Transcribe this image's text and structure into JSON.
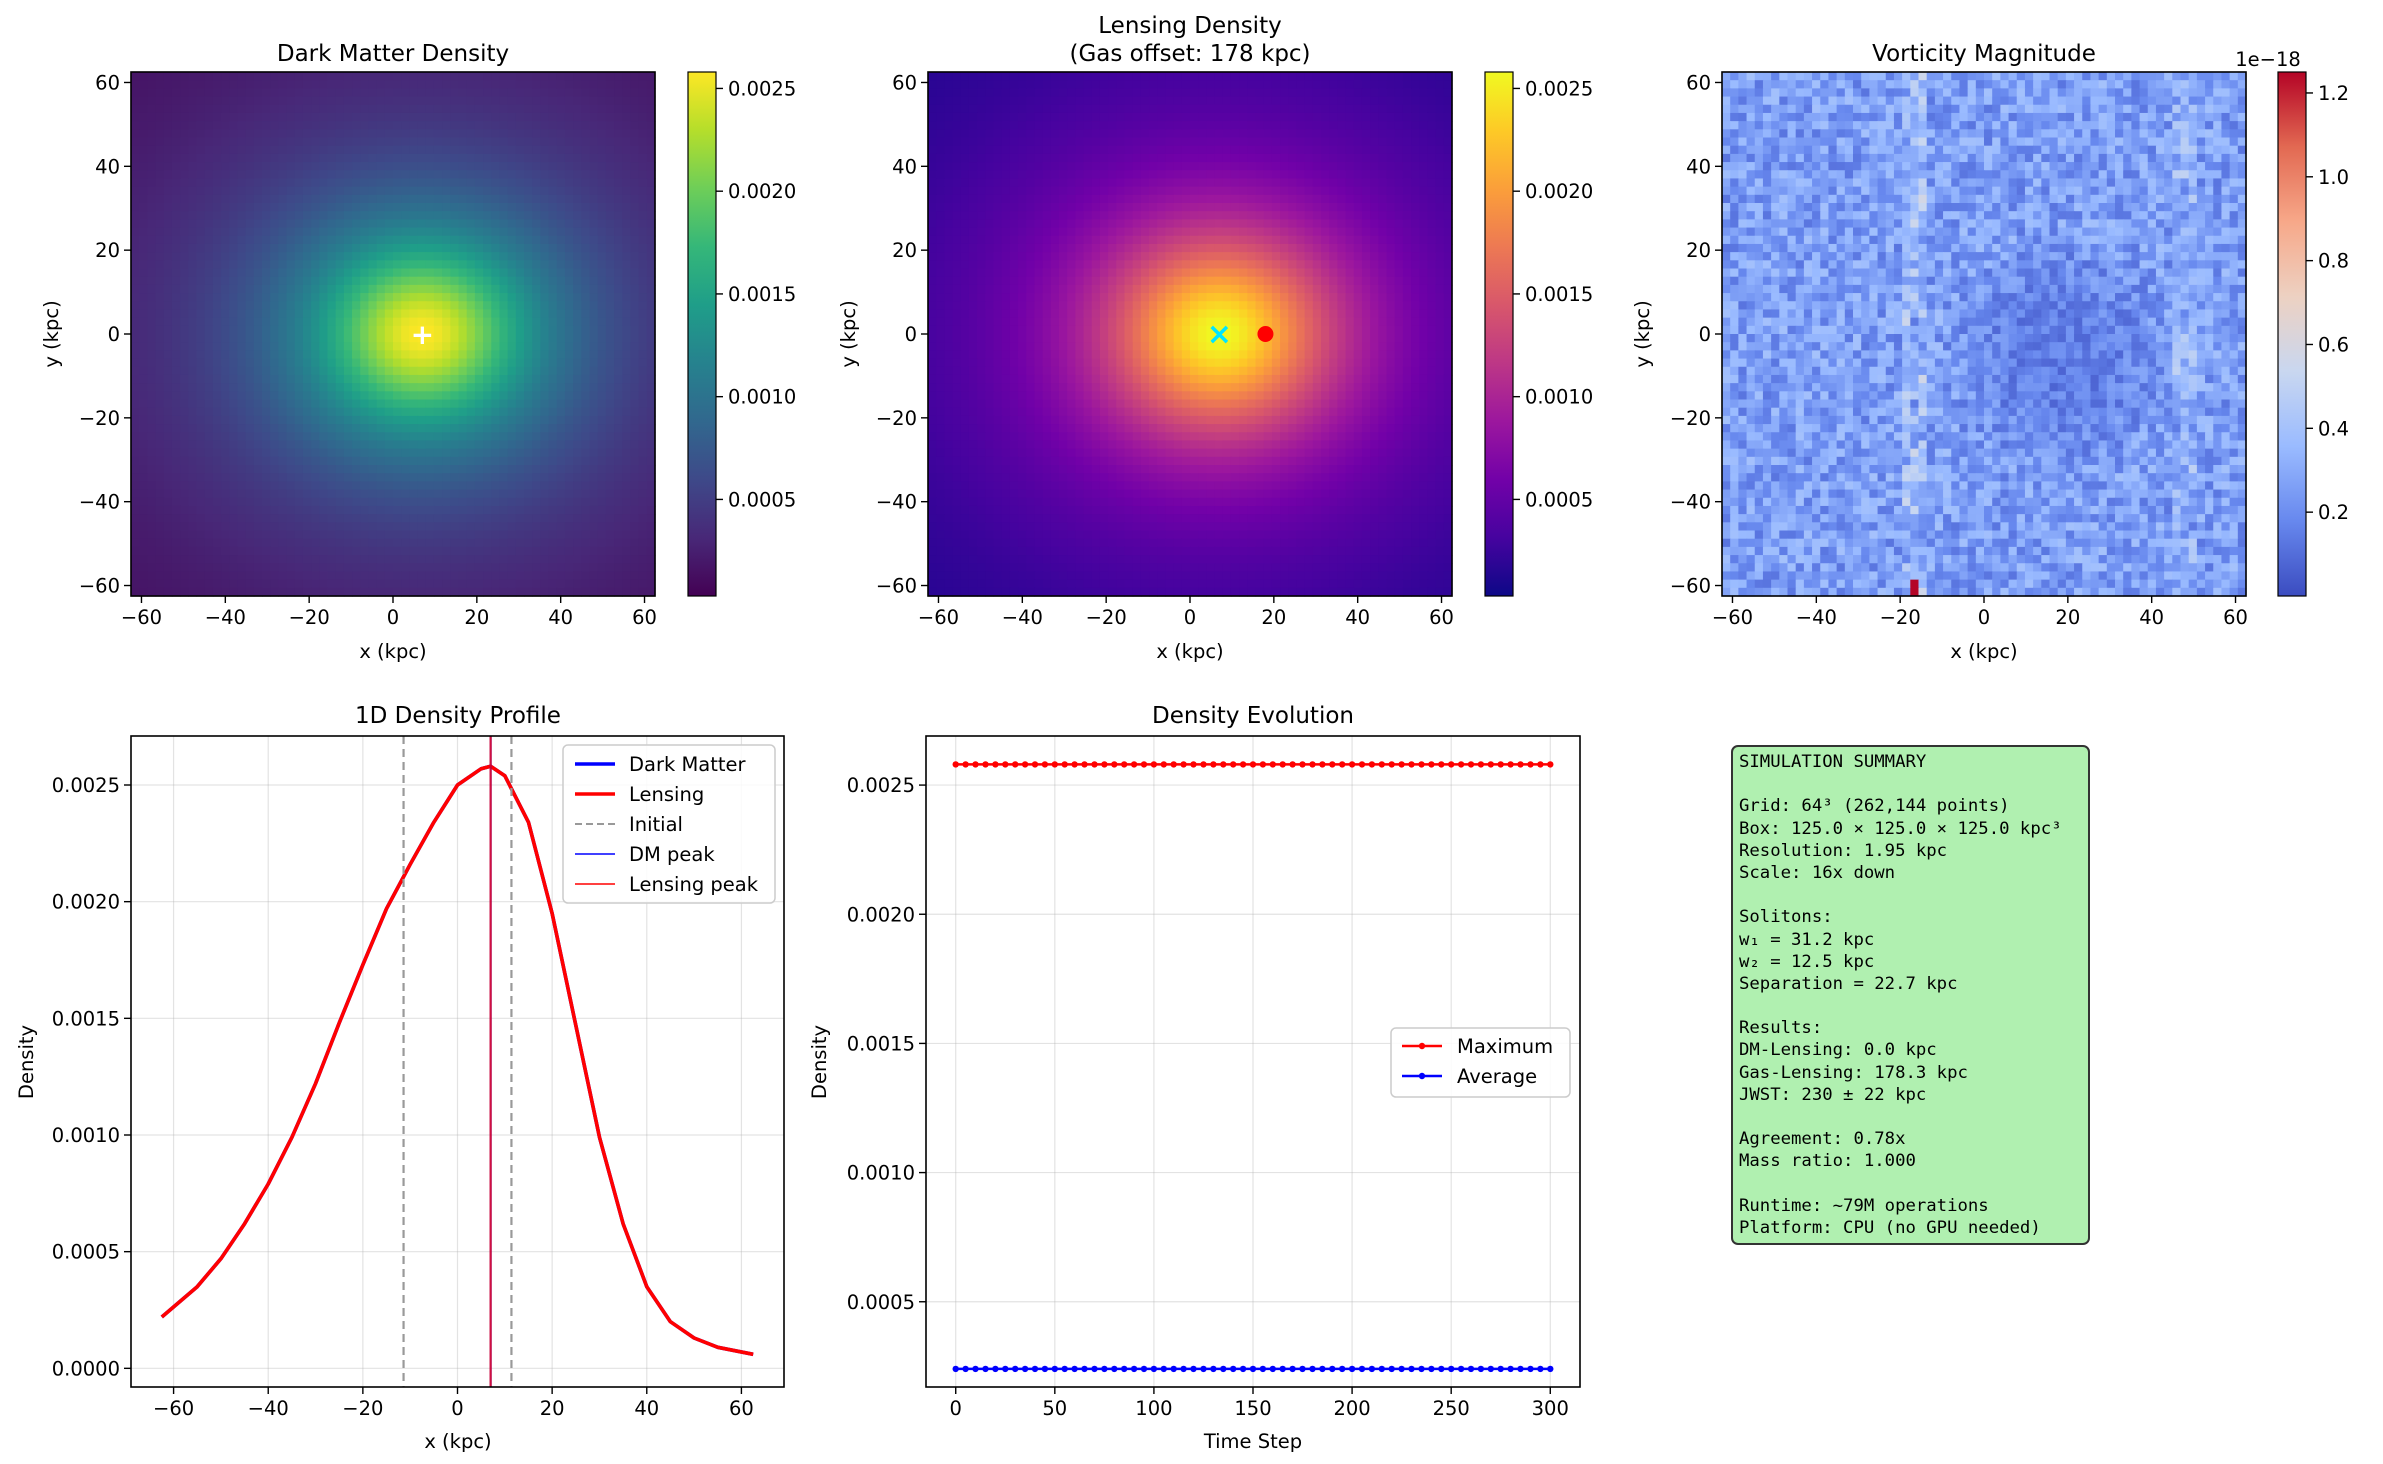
{
  "colors": {
    "viridis": [
      "#440154",
      "#482878",
      "#3e4989",
      "#31688e",
      "#26828e",
      "#1f9e89",
      "#35b779",
      "#6ece58",
      "#b5de2b",
      "#fde725"
    ],
    "plasma": [
      "#0d0887",
      "#46039f",
      "#7201a8",
      "#9c179e",
      "#bd3786",
      "#d8576b",
      "#ed7953",
      "#fb9f3a",
      "#fdca26",
      "#f0f921"
    ],
    "coolwarm": [
      "#3b4cc0",
      "#6788ee",
      "#9abbff",
      "#c9d7f0",
      "#edd1c2",
      "#f7a889",
      "#e26952",
      "#b40426"
    ],
    "dm_line": "#0000ff",
    "lensing_line": "#ff0000",
    "initial_line": "#999999",
    "summary_bg": "#b0f0b0"
  },
  "panels": {
    "dm_density": {
      "title": "Dark Matter Density",
      "xlabel": "x (kpc)",
      "ylabel": "y (kpc)",
      "ticks": [
        "−60",
        "−40",
        "−20",
        "0",
        "20",
        "40",
        "60"
      ],
      "colorbar_ticks": [
        "0.0005",
        "0.0010",
        "0.0015",
        "0.0020",
        "0.0025"
      ],
      "marker": "+"
    },
    "lensing_density": {
      "title_line1": "Lensing Density",
      "title_line2": "(Gas offset: 178 kpc)",
      "xlabel": "x (kpc)",
      "ylabel": "y (kpc)",
      "ticks": [
        "−60",
        "−40",
        "−20",
        "0",
        "20",
        "40",
        "60"
      ],
      "colorbar_ticks": [
        "0.0005",
        "0.0010",
        "0.0015",
        "0.0020",
        "0.0025"
      ],
      "marker": "×"
    },
    "vorticity": {
      "title": "Vorticity Magnitude",
      "xlabel": "x (kpc)",
      "ylabel": "y (kpc)",
      "ticks": [
        "−60",
        "−40",
        "−20",
        "0",
        "20",
        "40",
        "60"
      ],
      "colorbar_ticks": [
        "0.2",
        "0.4",
        "0.6",
        "0.8",
        "1.0",
        "1.2"
      ],
      "colorbar_offset": "1e−18"
    },
    "profile": {
      "title": "1D Density Profile",
      "xlabel": "x (kpc)",
      "ylabel": "Density",
      "xticks": [
        "−60",
        "−40",
        "−20",
        "0",
        "20",
        "40",
        "60"
      ],
      "yticks": [
        "0.0000",
        "0.0005",
        "0.0010",
        "0.0015",
        "0.0020",
        "0.0025"
      ],
      "legend": [
        "Dark Matter",
        "Lensing",
        "Initial",
        "DM peak",
        "Lensing peak"
      ]
    },
    "evolution": {
      "title": "Density Evolution",
      "xlabel": "Time Step",
      "ylabel": "Density",
      "xticks": [
        "0",
        "50",
        "100",
        "150",
        "200",
        "250",
        "300"
      ],
      "yticks": [
        "0.0005",
        "0.0010",
        "0.0015",
        "0.0020",
        "0.0025"
      ],
      "legend": [
        "Maximum",
        "Average"
      ]
    }
  },
  "summary": [
    "SIMULATION SUMMARY",
    "",
    "Grid: 64³ (262,144 points)",
    "Box: 125.0 × 125.0 × 125.0 kpc³",
    "Resolution: 1.95 kpc",
    "Scale: 16x down",
    "",
    "Solitons:",
    "w₁ = 31.2 kpc",
    "w₂ = 12.5 kpc",
    "Separation = 22.7 kpc",
    "",
    "Results:",
    "DM-Lensing: 0.0 kpc",
    "Gas-Lensing: 178.3 kpc",
    "JWST: 230 ± 22 kpc",
    "",
    "Agreement: 0.78x",
    "Mass ratio: 1.000",
    "",
    "Runtime: ~79M operations",
    "Platform: CPU (no GPU needed)"
  ],
  "chart_data": [
    {
      "type": "heatmap",
      "title": "Dark Matter Density",
      "xlabel": "x (kpc)",
      "ylabel": "y (kpc)",
      "xlim": [
        -62.5,
        62.5
      ],
      "ylim": [
        -62.5,
        62.5
      ],
      "grid_size": 64,
      "colormap": "viridis",
      "color_range": [
        3e-05,
        0.00258
      ],
      "blob_center_kpc": [
        7,
        0
      ],
      "blob_width_kpc": [
        25,
        22
      ],
      "peak_marker_kpc": [
        7,
        0
      ]
    },
    {
      "type": "heatmap",
      "title": "Lensing Density (Gas offset: 178 kpc)",
      "xlabel": "x (kpc)",
      "ylabel": "y (kpc)",
      "xlim": [
        -62.5,
        62.5
      ],
      "ylim": [
        -62.5,
        62.5
      ],
      "grid_size": 64,
      "colormap": "plasma",
      "color_range": [
        3e-05,
        0.00258
      ],
      "blob_center_kpc": [
        7,
        0
      ],
      "blob_width_kpc": [
        25,
        22
      ],
      "lensing_peak_marker_kpc": [
        7,
        0
      ],
      "gas_marker_kpc": [
        18,
        0
      ]
    },
    {
      "type": "heatmap",
      "title": "Vorticity Magnitude",
      "xlabel": "x (kpc)",
      "ylabel": "y (kpc)",
      "xlim": [
        -62.5,
        62.5
      ],
      "ylim": [
        -62.5,
        62.5
      ],
      "grid_size": 64,
      "colormap": "coolwarm",
      "color_range": [
        0.0,
        1.25e-18
      ],
      "max_cell_kpc": [
        -17,
        -61
      ]
    },
    {
      "type": "line",
      "title": "1D Density Profile",
      "xlabel": "x (kpc)",
      "ylabel": "Density",
      "xlim": [
        -69,
        69
      ],
      "ylim": [
        -8e-05,
        0.00271
      ],
      "series": [
        {
          "name": "Dark Matter",
          "x": [
            -62.5,
            -55,
            -50,
            -45,
            -40,
            -35,
            -30,
            -25,
            -20,
            -15,
            -10,
            -5,
            0,
            5,
            7,
            10,
            15,
            20,
            25,
            30,
            35,
            40,
            45,
            50,
            55,
            62.5
          ],
          "values": [
            0.00022,
            0.00035,
            0.00047,
            0.00062,
            0.00079,
            0.00099,
            0.00122,
            0.00148,
            0.00173,
            0.00197,
            0.00216,
            0.00234,
            0.0025,
            0.00257,
            0.00258,
            0.00254,
            0.00234,
            0.00195,
            0.00147,
            0.00099,
            0.00062,
            0.00035,
            0.0002,
            0.00013,
            9e-05,
            6e-05
          ]
        },
        {
          "name": "Lensing",
          "x": [
            -62.5,
            -55,
            -50,
            -45,
            -40,
            -35,
            -30,
            -25,
            -20,
            -15,
            -10,
            -5,
            0,
            5,
            7,
            10,
            15,
            20,
            25,
            30,
            35,
            40,
            45,
            50,
            55,
            62.5
          ],
          "values": [
            0.00022,
            0.00035,
            0.00047,
            0.00062,
            0.00079,
            0.00099,
            0.00122,
            0.00148,
            0.00173,
            0.00197,
            0.00216,
            0.00234,
            0.0025,
            0.00257,
            0.00258,
            0.00254,
            0.00234,
            0.00195,
            0.00147,
            0.00099,
            0.00062,
            0.00035,
            0.0002,
            0.00013,
            9e-05,
            6e-05
          ]
        },
        {
          "name": "Initial",
          "vlines_x": [
            -11.4,
            11.4
          ]
        },
        {
          "name": "DM peak",
          "vline_x": 7
        },
        {
          "name": "Lensing peak",
          "vline_x": 7
        }
      ],
      "legend": "top-right",
      "grid": true
    },
    {
      "type": "line",
      "title": "Density Evolution",
      "xlabel": "Time Step",
      "ylabel": "Density",
      "xlim": [
        -15,
        315
      ],
      "ylim": [
        0.00017,
        0.00269
      ],
      "series": [
        {
          "name": "Maximum",
          "x_range": [
            0,
            300
          ],
          "step": 5,
          "value": 0.00258
        },
        {
          "name": "Average",
          "x_range": [
            0,
            300
          ],
          "step": 5,
          "value": 0.00024
        }
      ],
      "legend": "center-right",
      "grid": true
    }
  ]
}
